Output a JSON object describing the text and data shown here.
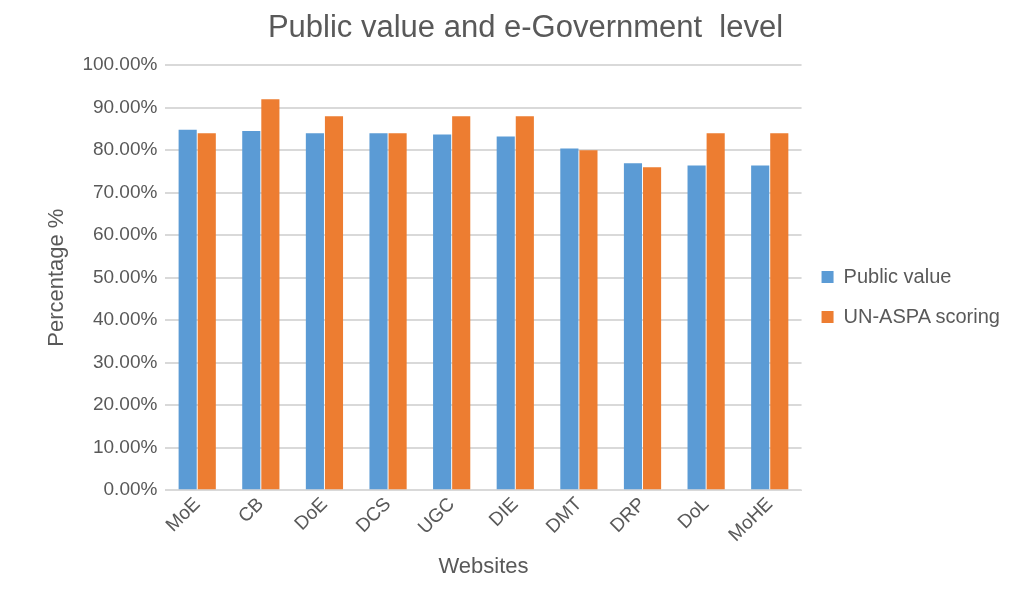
{
  "chart_data": {
    "type": "bar",
    "title": "Public value and e-Government  level",
    "xlabel": "Websites",
    "ylabel": "Percentage %",
    "categories": [
      "MoE",
      "CB",
      "DoE",
      "DCS",
      "UGC",
      "DIE",
      "DMT",
      "DRP",
      "DoL",
      "MoHE"
    ],
    "series": [
      {
        "name": "Public value",
        "color": "#5b9bd5",
        "values": [
          84.8,
          84.5,
          84,
          84,
          83.7,
          83.2,
          80.4,
          76.9,
          76.4,
          76.4
        ]
      },
      {
        "name": "UN-ASPA scoring",
        "color": "#ed7d31",
        "values": [
          84,
          92,
          88,
          84,
          88,
          88,
          80,
          76,
          84,
          84
        ]
      }
    ],
    "ylim": [
      0,
      100
    ],
    "yticks": [
      {
        "value": 0,
        "label": "0.00%"
      },
      {
        "value": 10,
        "label": "10.00%"
      },
      {
        "value": 20,
        "label": "20.00%"
      },
      {
        "value": 30,
        "label": "30.00%"
      },
      {
        "value": 40,
        "label": "40.00%"
      },
      {
        "value": 50,
        "label": "50.00%"
      },
      {
        "value": 60,
        "label": "60.00%"
      },
      {
        "value": 70,
        "label": "70.00%"
      },
      {
        "value": 80,
        "label": "80.00%"
      },
      {
        "value": 90,
        "label": "90.00%"
      },
      {
        "value": 100,
        "label": "100.00%"
      }
    ],
    "grid": "y",
    "legend": "right"
  }
}
